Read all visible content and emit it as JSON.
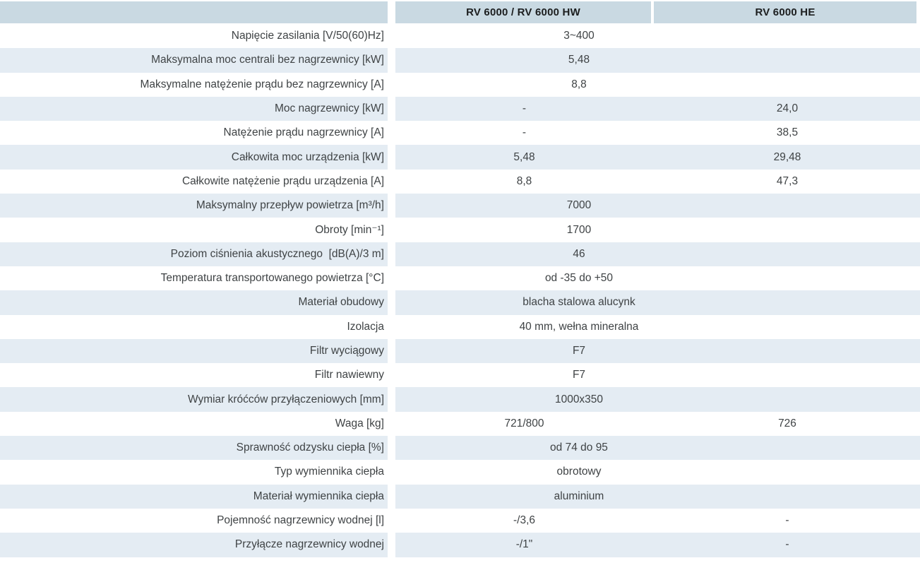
{
  "table": {
    "header": {
      "col1_label": "RV 6000 / RV 6000 HW",
      "col2_label": "RV 6000 HE"
    },
    "rows": [
      {
        "label": "Napięcie zasilania [V/50(60)Hz]",
        "merged": "3~400"
      },
      {
        "label": "Maksymalna moc centrali bez nagrzewnicy [kW]",
        "merged": "5,48"
      },
      {
        "label": "Maksymalne natężenie prądu bez nagrzewnicy [A]",
        "merged": "8,8"
      },
      {
        "label": "Moc nagrzewnicy [kW]",
        "col1": "-",
        "col2": "24,0"
      },
      {
        "label": "Natężenie prądu nagrzewnicy [A]",
        "col1": "-",
        "col2": "38,5"
      },
      {
        "label": "Całkowita moc urządzenia [kW]",
        "col1": "5,48",
        "col2": "29,48"
      },
      {
        "label": "Całkowite natężenie prądu urządzenia [A]",
        "col1": "8,8",
        "col2": "47,3"
      },
      {
        "label": "Maksymalny przepływ powietrza [m³/h]",
        "merged": "7000"
      },
      {
        "label": "Obroty [min⁻¹]",
        "merged": "1700"
      },
      {
        "label": "Poziom ciśnienia akustycznego  [dB(A)/3 m]",
        "merged": "46"
      },
      {
        "label": "Temperatura transportowanego powietrza [°C]",
        "merged": "od -35 do +50"
      },
      {
        "label": "Materiał obudowy",
        "merged": "blacha stalowa alucynk"
      },
      {
        "label": "Izolacja",
        "merged": "40 mm, wełna mineralna"
      },
      {
        "label": "Filtr wyciągowy",
        "merged": "F7"
      },
      {
        "label": "Filtr nawiewny",
        "merged": "F7"
      },
      {
        "label": "Wymiar króćców przyłączeniowych [mm]",
        "merged": "1000x350"
      },
      {
        "label": "Waga [kg]",
        "col1": "721/800",
        "col2": "726"
      },
      {
        "label": "Sprawność odzysku ciepła [%]",
        "merged": "od 74 do 95"
      },
      {
        "label": "Typ wymiennika ciepła",
        "merged": "obrotowy"
      },
      {
        "label": "Materiał wymiennika ciepła",
        "merged": "aluminium"
      },
      {
        "label": "Pojemność nagrzewnicy wodnej [l]",
        "col1": "-/3,6",
        "col2": "-"
      },
      {
        "label": "Przyłącze nagrzewnicy wodnej",
        "col1": "-/1\"",
        "col2": "-"
      }
    ],
    "colors": {
      "header_bg": "#c9d9e2",
      "row_alt_bg": "#e4ecf3",
      "row_bg": "#ffffff",
      "header_text": "#1c1e1f",
      "body_text": "#3f4345"
    }
  }
}
